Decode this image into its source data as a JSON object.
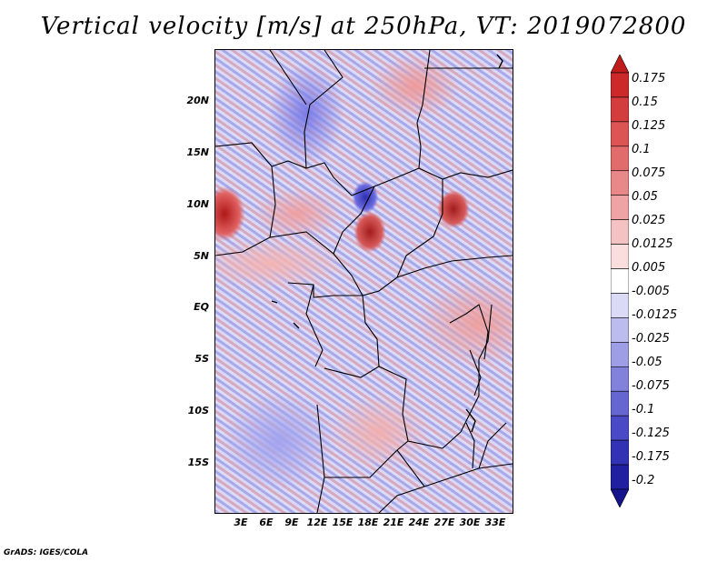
{
  "title": "Vertical velocity [m/s] at 250hPa, VT: 2019072800",
  "credit": "GrADS: IGES/COLA",
  "y_ticks": [
    "20N",
    "15N",
    "10N",
    "5N",
    "EQ",
    "5S",
    "10S",
    "15S"
  ],
  "x_ticks": [
    "3E",
    "6E",
    "9E",
    "12E",
    "15E",
    "18E",
    "21E",
    "24E",
    "27E",
    "30E",
    "33E"
  ],
  "colorbar": {
    "labels": [
      "0.175",
      "0.15",
      "0.125",
      "0.1",
      "0.075",
      "0.05",
      "0.025",
      "0.0125",
      "0.005",
      "-0.005",
      "-0.0125",
      "-0.025",
      "-0.05",
      "-0.075",
      "-0.1",
      "-0.125",
      "-0.175",
      "-0.2"
    ],
    "colors": [
      "#c01c1c",
      "#cc2a2a",
      "#d43d3d",
      "#dc5454",
      "#e26c6c",
      "#e88888",
      "#eea4a4",
      "#f4c2c2",
      "#fadede",
      "#ffffff",
      "#dadaf6",
      "#bcbcee",
      "#9e9ee6",
      "#8282dc",
      "#6666d2",
      "#4a4ac6",
      "#3232b4",
      "#2020a0",
      "#13138c"
    ]
  }
}
